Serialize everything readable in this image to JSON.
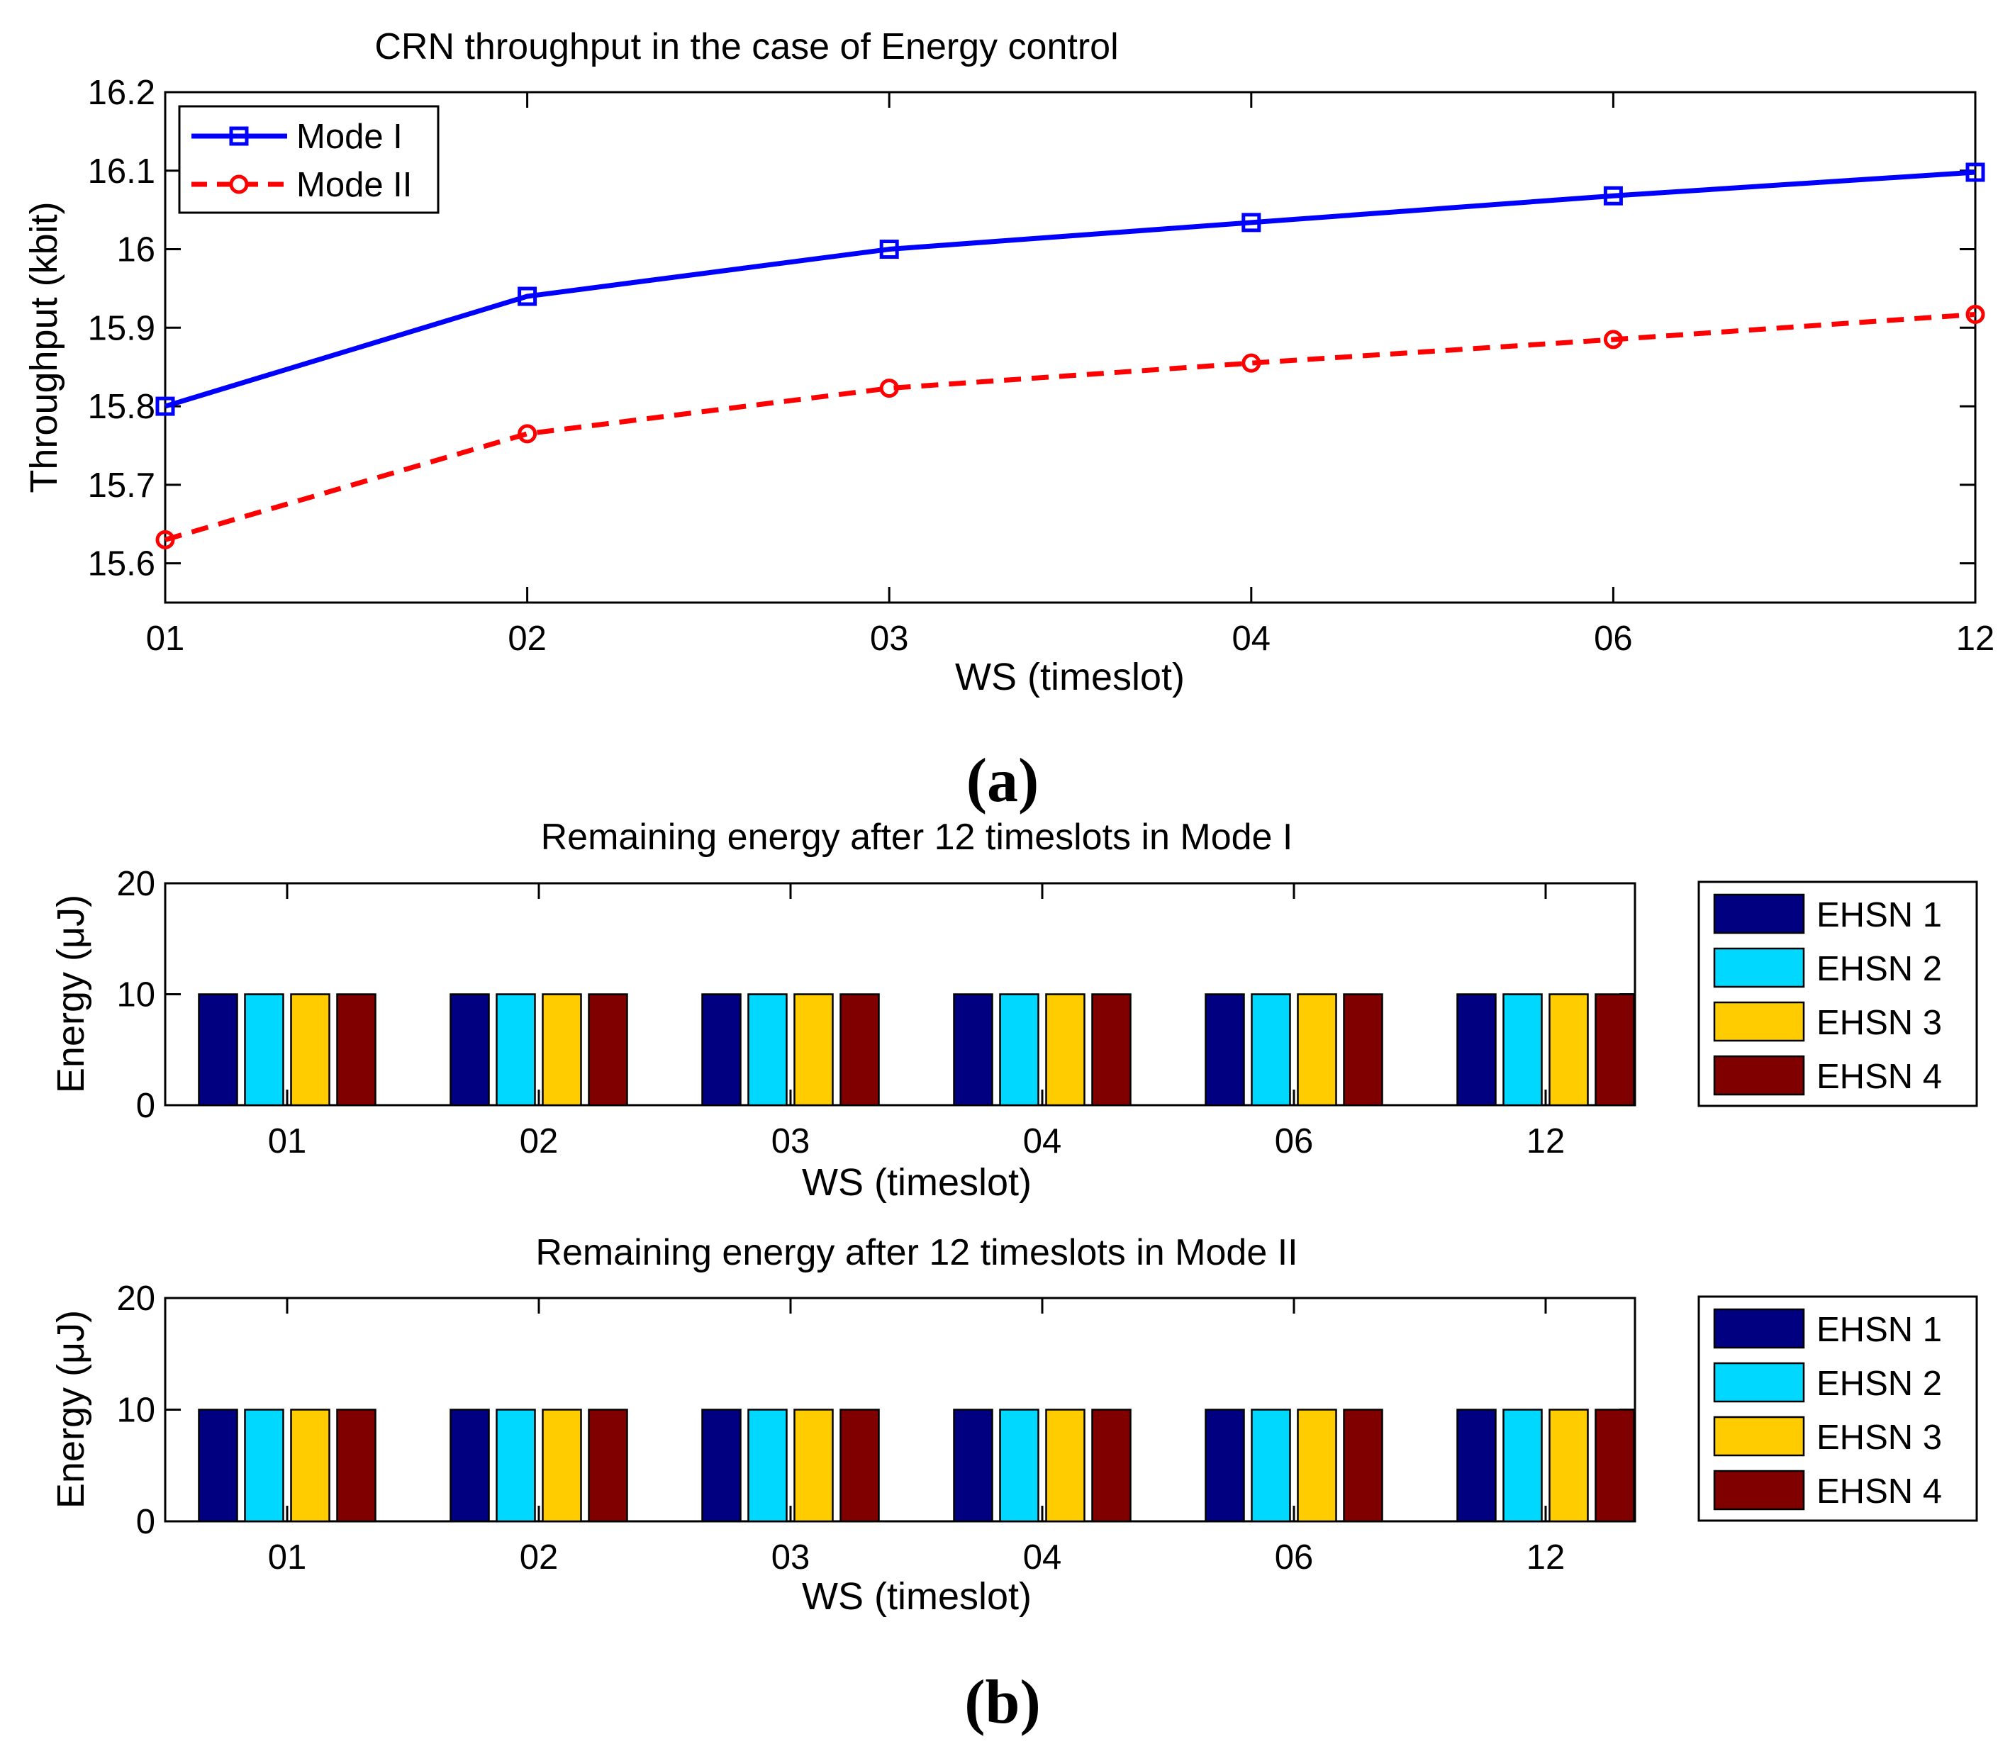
{
  "chart_data": [
    {
      "type": "line",
      "title": "CRN throughput in the case of Energy control",
      "xlabel": "WS (timeslot)",
      "ylabel": "Throughput (kbit)",
      "categories": [
        "01",
        "02",
        "03",
        "04",
        "06",
        "12"
      ],
      "yticks": [
        "15.6",
        "15.7",
        "15.8",
        "15.9",
        "16",
        "16.1",
        "16.2"
      ],
      "ylim": [
        15.55,
        16.2
      ],
      "series": [
        {
          "name": "Mode I",
          "color": "#0000ff",
          "marker": "square",
          "style": "solid",
          "values": [
            15.8,
            15.94,
            16.0,
            16.034,
            16.068,
            16.098
          ]
        },
        {
          "name": "Mode II",
          "color": "#ff0000",
          "marker": "circle",
          "style": "dashed",
          "values": [
            15.63,
            15.765,
            15.823,
            15.855,
            15.885,
            15.917
          ]
        }
      ],
      "legend": "top-left",
      "panel_label": "(a)"
    },
    {
      "type": "bar",
      "title": "Remaining energy after 12 timeslots in Mode I",
      "xlabel": "WS (timeslot)",
      "ylabel": "Energy (μJ)",
      "categories": [
        "01",
        "02",
        "03",
        "04",
        "06",
        "12"
      ],
      "yticks": [
        "0",
        "10",
        "20"
      ],
      "ylim": [
        0,
        20
      ],
      "series": [
        {
          "name": "EHSN 1",
          "color": "#000080",
          "values": [
            10,
            10,
            10,
            10,
            10,
            10
          ]
        },
        {
          "name": "EHSN 2",
          "color": "#00d8ff",
          "values": [
            10,
            10,
            10,
            10,
            10,
            10
          ]
        },
        {
          "name": "EHSN 3",
          "color": "#ffcc00",
          "values": [
            10,
            10,
            10,
            10,
            10,
            10
          ]
        },
        {
          "name": "EHSN 4",
          "color": "#800000",
          "values": [
            10,
            10,
            10,
            10,
            10,
            10
          ]
        }
      ],
      "legend": "right"
    },
    {
      "type": "bar",
      "title": "Remaining energy after 12 timeslots in Mode II",
      "xlabel": "WS (timeslot)",
      "ylabel": "Energy (μJ)",
      "categories": [
        "01",
        "02",
        "03",
        "04",
        "06",
        "12"
      ],
      "yticks": [
        "0",
        "10",
        "20"
      ],
      "ylim": [
        0,
        20
      ],
      "series": [
        {
          "name": "EHSN 1",
          "color": "#000080",
          "values": [
            10,
            10,
            10,
            10,
            10,
            10
          ]
        },
        {
          "name": "EHSN 2",
          "color": "#00d8ff",
          "values": [
            10,
            10,
            10,
            10,
            10,
            10
          ]
        },
        {
          "name": "EHSN 3",
          "color": "#ffcc00",
          "values": [
            10,
            10,
            10,
            10,
            10,
            10
          ]
        },
        {
          "name": "EHSN 4",
          "color": "#800000",
          "values": [
            10,
            10,
            10,
            10,
            10,
            10
          ]
        }
      ],
      "legend": "right",
      "panel_label": "(b)"
    }
  ]
}
